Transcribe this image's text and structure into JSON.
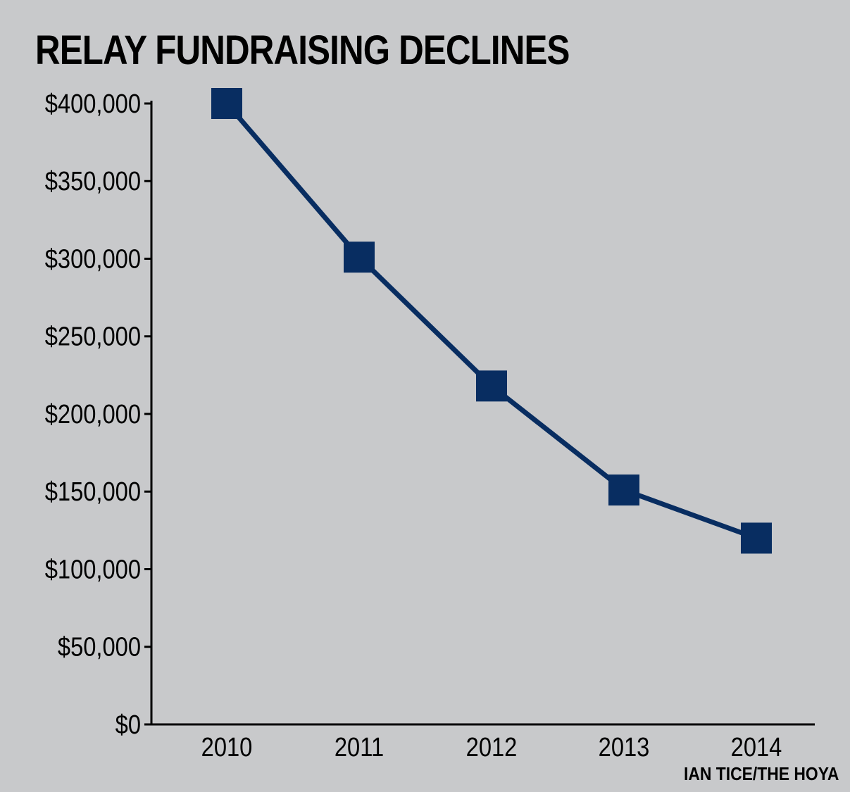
{
  "colors": {
    "background": "#c8c9cb",
    "series": "#082d61",
    "axis": "#000000"
  },
  "credit": "IAN TICE/THE HOYA",
  "chart_data": {
    "type": "line",
    "title": "RELAY FUNDRAISING DECLINES",
    "xlabel": "",
    "ylabel": "",
    "categories": [
      "2010",
      "2011",
      "2012",
      "2013",
      "2014"
    ],
    "series": [
      {
        "values": [
          400000,
          301000,
          218000,
          151000,
          120000
        ],
        "marker": "square"
      }
    ],
    "ylim": [
      0,
      400000
    ],
    "yticks": [
      0,
      50000,
      100000,
      150000,
      200000,
      250000,
      300000,
      350000,
      400000
    ],
    "ytick_labels": [
      "$0",
      "$50,000",
      "$100,000",
      "$150,000",
      "$200,000",
      "$250,000",
      "$300,000",
      "$350,000",
      "$400,000"
    ],
    "grid": false,
    "legend": "none"
  }
}
